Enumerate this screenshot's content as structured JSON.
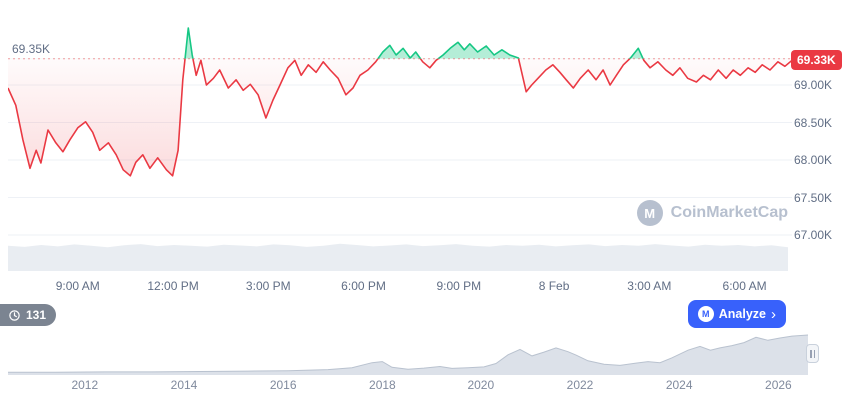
{
  "colors": {
    "up_green": "#16c784",
    "down_red": "#ea3943",
    "accent_blue": "#3861fb",
    "grid": "#eef1f6",
    "axis_text": "#616e85",
    "minimap_fill": "#e9edf2",
    "timeline_fill": "#dce1e9",
    "timeline_stroke": "#b9c2cf"
  },
  "watermark": {
    "text": "CoinMarketCap",
    "logo_letter": "M"
  },
  "toolbar": {
    "counter": "131",
    "analyze_label": "Analyze",
    "analyze_chevron": "›",
    "analyze_logo_letter": "M"
  },
  "chart_data": [
    {
      "type": "line",
      "name": "price-24h",
      "reference_value": 69.35,
      "reference_label": "69.35K",
      "last_value": 69.33,
      "last_price_label": "69.33K",
      "y_range": [
        66.507,
        70.0
      ],
      "line_color_up": "#16c784",
      "line_color_down": "#ea3943",
      "legend": "price in thousands USD, window approx 7:00 AM to 7:00 AM next day",
      "y_ticks": [
        {
          "value": 69.0,
          "label": "69.00K"
        },
        {
          "value": 68.5,
          "label": "68.50K"
        },
        {
          "value": 68.0,
          "label": "68.00K"
        },
        {
          "value": 67.5,
          "label": "67.50K"
        },
        {
          "value": 67.0,
          "label": "67.00K"
        }
      ],
      "x_ticks": [
        {
          "f": 0.089,
          "label": "9:00 AM"
        },
        {
          "f": 0.2105,
          "label": "12:00 PM"
        },
        {
          "f": 0.332,
          "label": "3:00 PM"
        },
        {
          "f": 0.4535,
          "label": "6:00 PM"
        },
        {
          "f": 0.575,
          "label": "9:00 PM"
        },
        {
          "f": 0.6965,
          "label": "8 Feb"
        },
        {
          "f": 0.818,
          "label": "3:00 AM"
        },
        {
          "f": 0.9395,
          "label": "6:00 AM"
        }
      ],
      "points": [
        [
          0.0,
          68.96
        ],
        [
          0.01,
          68.73
        ],
        [
          0.019,
          68.27
        ],
        [
          0.028,
          67.89
        ],
        [
          0.036,
          68.13
        ],
        [
          0.042,
          67.96
        ],
        [
          0.051,
          68.4
        ],
        [
          0.061,
          68.23
        ],
        [
          0.07,
          68.11
        ],
        [
          0.079,
          68.27
        ],
        [
          0.089,
          68.43
        ],
        [
          0.099,
          68.51
        ],
        [
          0.108,
          68.37
        ],
        [
          0.117,
          68.13
        ],
        [
          0.128,
          68.23
        ],
        [
          0.138,
          68.07
        ],
        [
          0.147,
          67.87
        ],
        [
          0.156,
          67.79
        ],
        [
          0.163,
          67.97
        ],
        [
          0.172,
          68.07
        ],
        [
          0.181,
          67.89
        ],
        [
          0.191,
          68.03
        ],
        [
          0.202,
          67.87
        ],
        [
          0.21,
          67.79
        ],
        [
          0.217,
          68.13
        ],
        [
          0.223,
          69.07
        ],
        [
          0.23,
          69.76
        ],
        [
          0.235,
          69.4
        ],
        [
          0.24,
          69.13
        ],
        [
          0.246,
          69.33
        ],
        [
          0.253,
          69.0
        ],
        [
          0.262,
          69.09
        ],
        [
          0.27,
          69.2
        ],
        [
          0.281,
          68.96
        ],
        [
          0.291,
          69.07
        ],
        [
          0.3,
          68.93
        ],
        [
          0.309,
          69.01
        ],
        [
          0.319,
          68.87
        ],
        [
          0.329,
          68.56
        ],
        [
          0.338,
          68.8
        ],
        [
          0.347,
          69.0
        ],
        [
          0.357,
          69.23
        ],
        [
          0.366,
          69.33
        ],
        [
          0.374,
          69.13
        ],
        [
          0.383,
          69.27
        ],
        [
          0.393,
          69.17
        ],
        [
          0.402,
          69.31
        ],
        [
          0.411,
          69.2
        ],
        [
          0.421,
          69.09
        ],
        [
          0.431,
          68.87
        ],
        [
          0.44,
          68.96
        ],
        [
          0.449,
          69.13
        ],
        [
          0.459,
          69.2
        ],
        [
          0.469,
          69.31
        ],
        [
          0.478,
          69.44
        ],
        [
          0.487,
          69.53
        ],
        [
          0.495,
          69.4
        ],
        [
          0.504,
          69.49
        ],
        [
          0.513,
          69.36
        ],
        [
          0.52,
          69.44
        ],
        [
          0.529,
          69.31
        ],
        [
          0.538,
          69.23
        ],
        [
          0.546,
          69.33
        ],
        [
          0.555,
          69.4
        ],
        [
          0.564,
          69.49
        ],
        [
          0.574,
          69.57
        ],
        [
          0.582,
          69.47
        ],
        [
          0.589,
          69.55
        ],
        [
          0.599,
          69.44
        ],
        [
          0.61,
          69.52
        ],
        [
          0.62,
          69.4
        ],
        [
          0.63,
          69.47
        ],
        [
          0.64,
          69.4
        ],
        [
          0.651,
          69.36
        ],
        [
          0.661,
          68.91
        ],
        [
          0.668,
          69.0
        ],
        [
          0.676,
          69.09
        ],
        [
          0.686,
          69.2
        ],
        [
          0.695,
          69.27
        ],
        [
          0.704,
          69.17
        ],
        [
          0.712,
          69.07
        ],
        [
          0.721,
          68.96
        ],
        [
          0.73,
          69.09
        ],
        [
          0.74,
          69.2
        ],
        [
          0.75,
          69.07
        ],
        [
          0.759,
          69.2
        ],
        [
          0.768,
          69.0
        ],
        [
          0.776,
          69.13
        ],
        [
          0.785,
          69.27
        ],
        [
          0.794,
          69.36
        ],
        [
          0.804,
          69.49
        ],
        [
          0.811,
          69.33
        ],
        [
          0.819,
          69.23
        ],
        [
          0.829,
          69.31
        ],
        [
          0.839,
          69.2
        ],
        [
          0.848,
          69.13
        ],
        [
          0.857,
          69.23
        ],
        [
          0.867,
          69.09
        ],
        [
          0.878,
          69.04
        ],
        [
          0.887,
          69.13
        ],
        [
          0.896,
          69.07
        ],
        [
          0.906,
          69.2
        ],
        [
          0.916,
          69.09
        ],
        [
          0.925,
          69.2
        ],
        [
          0.934,
          69.13
        ],
        [
          0.944,
          69.23
        ],
        [
          0.953,
          69.17
        ],
        [
          0.962,
          69.27
        ],
        [
          0.972,
          69.2
        ],
        [
          0.982,
          69.31
        ],
        [
          0.991,
          69.25
        ],
        [
          1.0,
          69.33
        ]
      ]
    },
    {
      "type": "area",
      "name": "minimap-strip",
      "values": [
        0.9,
        0.86,
        0.93,
        0.88,
        0.95,
        0.9,
        0.85,
        0.92,
        0.96,
        0.89,
        0.93,
        0.9,
        0.87,
        0.94,
        0.91,
        0.88,
        0.95,
        0.92,
        0.86,
        0.9,
        0.97,
        0.93,
        0.88,
        0.91,
        0.95,
        0.89,
        0.92,
        0.96,
        0.9,
        0.87,
        0.93,
        0.9,
        0.94,
        0.88,
        0.92,
        0.95,
        0.89,
        0.93,
        0.9,
        0.96,
        0.91,
        0.87,
        0.94,
        0.9,
        0.93,
        0.88,
        0.92,
        0.85
      ]
    },
    {
      "type": "area",
      "name": "history-timeline",
      "x_ticks": [
        {
          "f": 0.096,
          "label": "2012"
        },
        {
          "f": 0.22,
          "label": "2014"
        },
        {
          "f": 0.344,
          "label": "2016"
        },
        {
          "f": 0.468,
          "label": "2018"
        },
        {
          "f": 0.591,
          "label": "2020"
        },
        {
          "f": 0.715,
          "label": "2022"
        },
        {
          "f": 0.839,
          "label": "2024"
        },
        {
          "f": 0.963,
          "label": "2026"
        }
      ],
      "points": [
        [
          0.0,
          0.02
        ],
        [
          0.06,
          0.02
        ],
        [
          0.12,
          0.03
        ],
        [
          0.18,
          0.03
        ],
        [
          0.24,
          0.04
        ],
        [
          0.3,
          0.05
        ],
        [
          0.35,
          0.06
        ],
        [
          0.4,
          0.09
        ],
        [
          0.43,
          0.14
        ],
        [
          0.455,
          0.27
        ],
        [
          0.468,
          0.3
        ],
        [
          0.48,
          0.15
        ],
        [
          0.5,
          0.1
        ],
        [
          0.52,
          0.13
        ],
        [
          0.54,
          0.17
        ],
        [
          0.555,
          0.12
        ],
        [
          0.575,
          0.14
        ],
        [
          0.595,
          0.16
        ],
        [
          0.61,
          0.25
        ],
        [
          0.625,
          0.48
        ],
        [
          0.64,
          0.62
        ],
        [
          0.655,
          0.45
        ],
        [
          0.67,
          0.55
        ],
        [
          0.685,
          0.66
        ],
        [
          0.7,
          0.56
        ],
        [
          0.71,
          0.47
        ],
        [
          0.725,
          0.32
        ],
        [
          0.745,
          0.23
        ],
        [
          0.765,
          0.2
        ],
        [
          0.785,
          0.26
        ],
        [
          0.8,
          0.3
        ],
        [
          0.815,
          0.27
        ],
        [
          0.83,
          0.4
        ],
        [
          0.85,
          0.6
        ],
        [
          0.865,
          0.7
        ],
        [
          0.878,
          0.6
        ],
        [
          0.89,
          0.66
        ],
        [
          0.905,
          0.72
        ],
        [
          0.92,
          0.8
        ],
        [
          0.935,
          0.94
        ],
        [
          0.95,
          0.86
        ],
        [
          0.965,
          0.92
        ],
        [
          0.98,
          0.97
        ],
        [
          1.0,
          1.0
        ]
      ]
    }
  ]
}
